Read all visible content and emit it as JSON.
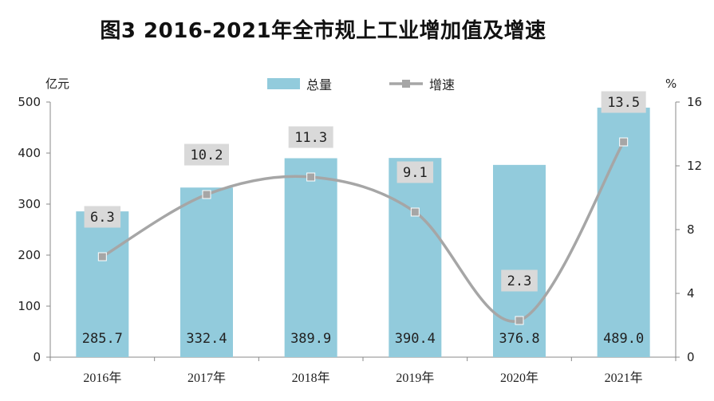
{
  "chart_title": "图3   2016-2021年全市规上工业增加值及增速",
  "chart_data": {
    "type": "bar",
    "title": "图3   2016-2021年全市规上工业增加值及增速",
    "categories": [
      "2016年",
      "2017年",
      "2018年",
      "2019年",
      "2020年",
      "2021年"
    ],
    "series": [
      {
        "name": "总量",
        "type": "bar",
        "axis": "left",
        "values": [
          285.7,
          332.4,
          389.9,
          390.4,
          376.8,
          489.0
        ],
        "labels": [
          "285.7",
          "332.4",
          "389.9",
          "390.4",
          "376.8",
          "489.0"
        ],
        "color": "#92cbdc"
      },
      {
        "name": "增速",
        "type": "line",
        "axis": "right",
        "values": [
          6.3,
          10.2,
          11.3,
          9.1,
          2.3,
          13.5
        ],
        "labels": [
          "6.3",
          "10.2",
          "11.3",
          "9.1",
          "2.3",
          "13.5"
        ],
        "color": "#a6a6a6"
      }
    ],
    "y_left": {
      "unit": "亿元",
      "range": [
        0,
        500
      ],
      "ticks": [
        "0",
        "100",
        "200",
        "300",
        "400",
        "500"
      ]
    },
    "y_right": {
      "unit": "%",
      "range": [
        0,
        16
      ],
      "ticks": [
        "0",
        "4",
        "8",
        "12",
        "16"
      ]
    },
    "legend_position": "top-center",
    "grid": false
  }
}
